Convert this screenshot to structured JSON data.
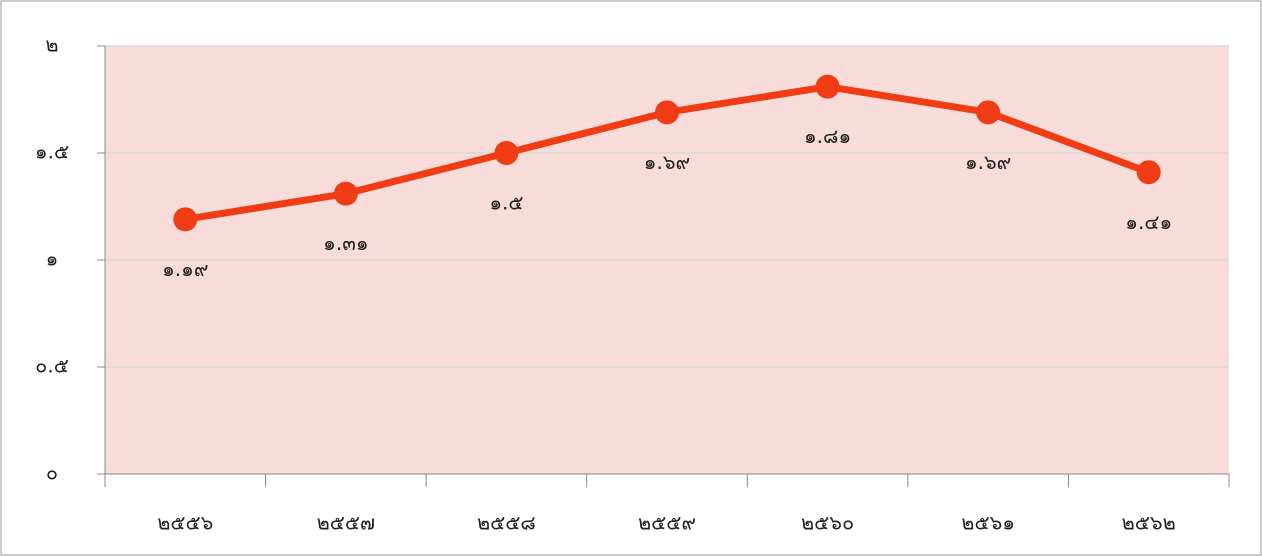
{
  "chart_data": {
    "type": "line",
    "categories": [
      "๒๕๕๖",
      "๒๕๕๗",
      "๒๕๕๘",
      "๒๕๕๙",
      "๒๕๖๐",
      "๒๕๖๑",
      "๒๕๖๒"
    ],
    "series": [
      {
        "color": "#f03c14",
        "values": [
          1.19,
          1.31,
          1.5,
          1.69,
          1.81,
          1.69,
          1.41
        ],
        "value_labels": [
          "๑.๑๙",
          "๑.๓๑",
          "๑.๕",
          "๑.๖๙",
          "๑.๘๑",
          "๑.๖๙",
          "๑.๔๑"
        ]
      }
    ],
    "ylim": [
      0,
      2
    ],
    "yticks": [
      {
        "value": 0,
        "label": "๐"
      },
      {
        "value": 0.5,
        "label": "๐.๕"
      },
      {
        "value": 1,
        "label": "๑"
      },
      {
        "value": 1.5,
        "label": "๑.๕"
      },
      {
        "value": 2,
        "label": "๒"
      }
    ],
    "grid": true,
    "plot_background": "#f8dcd9"
  }
}
